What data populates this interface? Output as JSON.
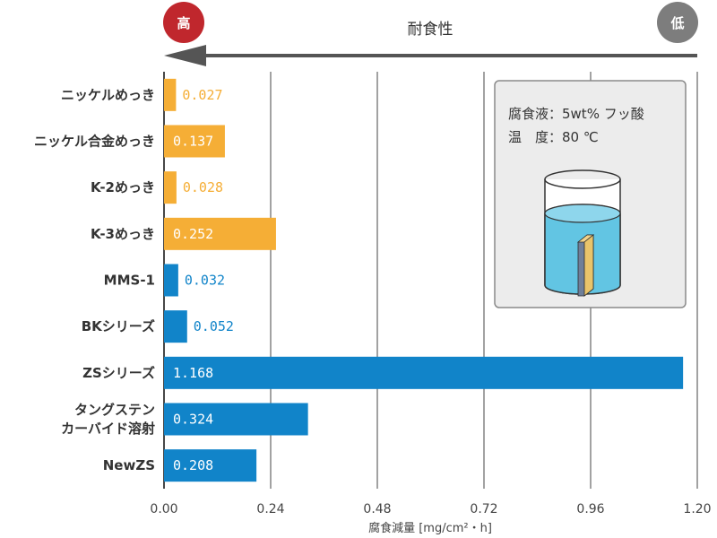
{
  "header": {
    "title": "耐食性",
    "high_label": "高",
    "low_label": "低",
    "high_color": "#c0272d",
    "low_color": "#7d7d7d"
  },
  "conditions": {
    "line1": "腐食液：5wt% フッ酸",
    "line2": "温　度：80 ℃"
  },
  "colors": {
    "orange": "#f5ae36",
    "blue": "#1184c9"
  },
  "chart_data": {
    "type": "bar",
    "orientation": "horizontal",
    "xlabel": "腐食減量 [mg/cm²・h]",
    "xlim": [
      0,
      1.2
    ],
    "xticks": [
      "0.00",
      "0.24",
      "0.48",
      "0.72",
      "0.96",
      "1.20"
    ],
    "grid": true,
    "categories": [
      [
        "ニッケルめっき"
      ],
      [
        "ニッケル合金めっき"
      ],
      [
        "K-2めっき"
      ],
      [
        "K-3めっき"
      ],
      [
        "MMS-1"
      ],
      [
        "BKシリーズ"
      ],
      [
        "ZSシリーズ"
      ],
      [
        "タングステン",
        "カーバイド溶射"
      ],
      [
        "NewZS"
      ]
    ],
    "values": [
      0.027,
      0.137,
      0.028,
      0.252,
      0.032,
      0.052,
      1.168,
      0.324,
      0.208
    ],
    "labels": [
      "0.027",
      "0.137",
      "0.028",
      "0.252",
      "0.032",
      "0.052",
      "1.168",
      "0.324",
      "0.208"
    ],
    "bar_colors": [
      "orange",
      "orange",
      "orange",
      "orange",
      "blue",
      "blue",
      "blue",
      "blue",
      "blue"
    ]
  }
}
